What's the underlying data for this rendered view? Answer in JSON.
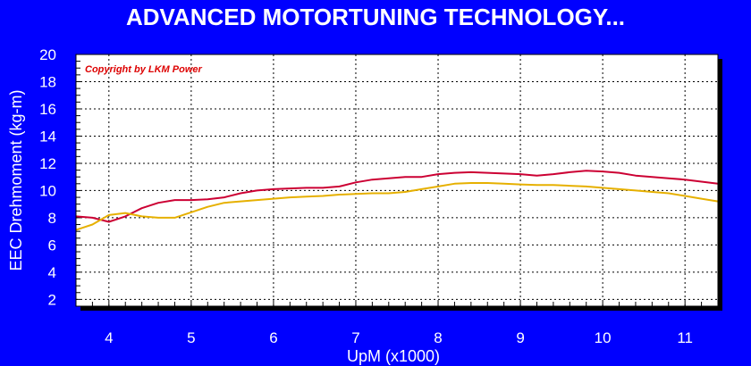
{
  "chart_data": {
    "type": "line",
    "title": "ADVANCED MOTORTUNING TECHNOLOGY...",
    "watermark": "Copyright by LKM Power",
    "xlabel": "UpM (x1000)",
    "ylabel": "EEC Drehmoment (kg-m)",
    "xlim": [
      3.6,
      11.4
    ],
    "ylim": [
      1.5,
      20
    ],
    "x_ticks": [
      4,
      5,
      6,
      7,
      8,
      9,
      10,
      11
    ],
    "y_ticks": [
      2,
      4,
      6,
      8,
      10,
      12,
      14,
      16,
      18,
      20
    ],
    "grid": true,
    "series": [
      {
        "color": "#cc0033",
        "points": [
          [
            3.6,
            8.1
          ],
          [
            3.8,
            8.0
          ],
          [
            4.0,
            7.7
          ],
          [
            4.2,
            8.1
          ],
          [
            4.4,
            8.7
          ],
          [
            4.6,
            9.1
          ],
          [
            4.8,
            9.3
          ],
          [
            5.0,
            9.3
          ],
          [
            5.2,
            9.35
          ],
          [
            5.4,
            9.5
          ],
          [
            5.6,
            9.8
          ],
          [
            5.8,
            10.0
          ],
          [
            6.0,
            10.1
          ],
          [
            6.2,
            10.15
          ],
          [
            6.4,
            10.2
          ],
          [
            6.6,
            10.2
          ],
          [
            6.8,
            10.3
          ],
          [
            7.0,
            10.6
          ],
          [
            7.2,
            10.8
          ],
          [
            7.4,
            10.9
          ],
          [
            7.6,
            11.0
          ],
          [
            7.8,
            11.0
          ],
          [
            8.0,
            11.2
          ],
          [
            8.2,
            11.3
          ],
          [
            8.4,
            11.35
          ],
          [
            8.6,
            11.3
          ],
          [
            8.8,
            11.25
          ],
          [
            9.0,
            11.2
          ],
          [
            9.2,
            11.1
          ],
          [
            9.4,
            11.2
          ],
          [
            9.6,
            11.35
          ],
          [
            9.8,
            11.45
          ],
          [
            10.0,
            11.4
          ],
          [
            10.2,
            11.3
          ],
          [
            10.4,
            11.1
          ],
          [
            10.6,
            11.0
          ],
          [
            10.8,
            10.9
          ],
          [
            11.0,
            10.8
          ],
          [
            11.2,
            10.65
          ],
          [
            11.4,
            10.5
          ]
        ]
      },
      {
        "color": "#e6b000",
        "points": [
          [
            3.6,
            7.1
          ],
          [
            3.8,
            7.5
          ],
          [
            4.0,
            8.2
          ],
          [
            4.2,
            8.35
          ],
          [
            4.4,
            8.1
          ],
          [
            4.6,
            8.0
          ],
          [
            4.8,
            8.0
          ],
          [
            5.0,
            8.4
          ],
          [
            5.2,
            8.8
          ],
          [
            5.4,
            9.1
          ],
          [
            5.6,
            9.2
          ],
          [
            5.8,
            9.3
          ],
          [
            6.0,
            9.4
          ],
          [
            6.2,
            9.5
          ],
          [
            6.4,
            9.55
          ],
          [
            6.6,
            9.6
          ],
          [
            6.8,
            9.7
          ],
          [
            7.0,
            9.75
          ],
          [
            7.2,
            9.8
          ],
          [
            7.4,
            9.8
          ],
          [
            7.6,
            9.9
          ],
          [
            7.8,
            10.1
          ],
          [
            8.0,
            10.3
          ],
          [
            8.2,
            10.5
          ],
          [
            8.4,
            10.55
          ],
          [
            8.6,
            10.55
          ],
          [
            8.8,
            10.5
          ],
          [
            9.0,
            10.45
          ],
          [
            9.2,
            10.4
          ],
          [
            9.4,
            10.4
          ],
          [
            9.6,
            10.35
          ],
          [
            9.8,
            10.3
          ],
          [
            10.0,
            10.2
          ],
          [
            10.2,
            10.1
          ],
          [
            10.4,
            10.0
          ],
          [
            10.6,
            9.9
          ],
          [
            10.8,
            9.8
          ],
          [
            11.0,
            9.6
          ],
          [
            11.2,
            9.4
          ],
          [
            11.4,
            9.2
          ]
        ]
      }
    ]
  }
}
